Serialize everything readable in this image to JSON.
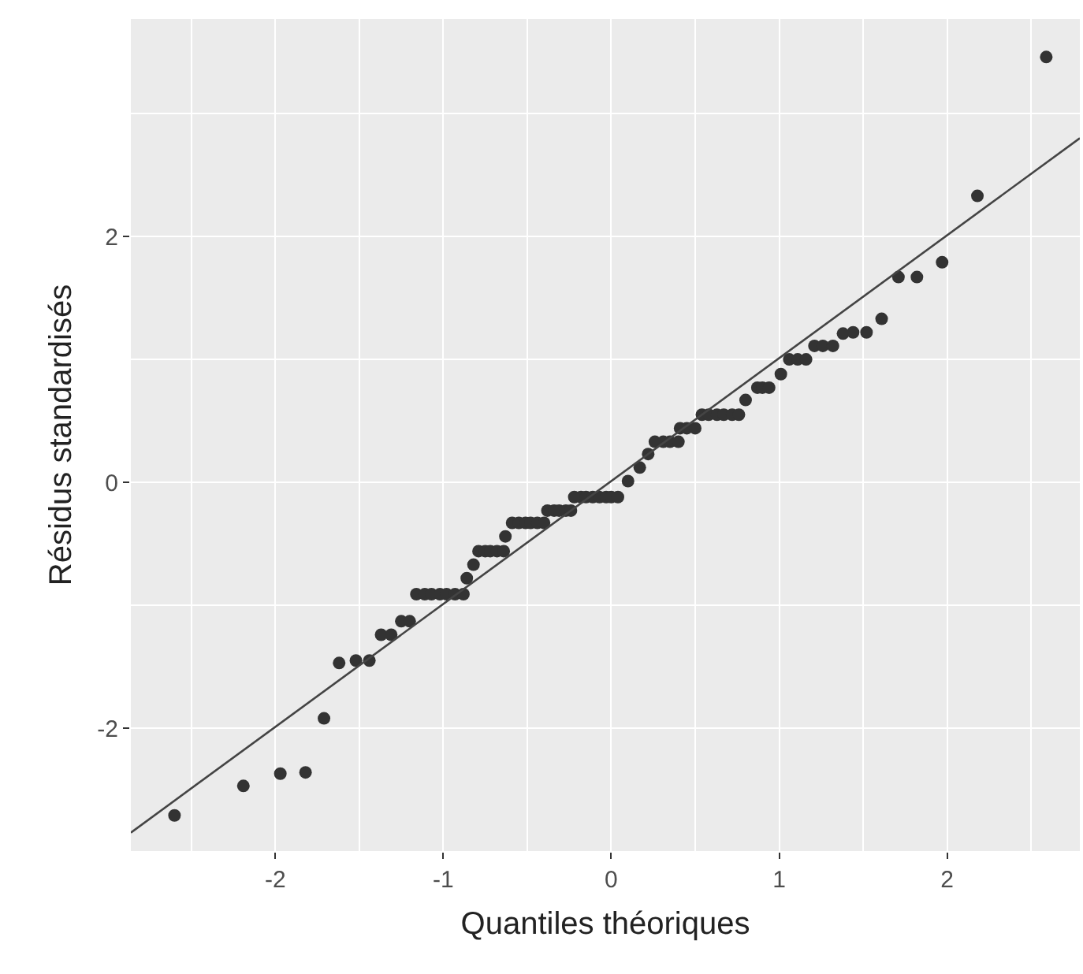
{
  "chart_data": {
    "type": "scatter",
    "xlabel": "Quantiles théoriques",
    "ylabel": "Résidus standardisés",
    "xlim": [
      -2.86,
      2.79
    ],
    "ylim": [
      -3.0,
      3.77
    ],
    "xticks": [
      -2,
      -1,
      0,
      1,
      2
    ],
    "yticks": [
      -2,
      0,
      2
    ],
    "grid": true,
    "marker": "circle",
    "series": [
      {
        "color": "#333333",
        "x": [
          -2.6,
          -2.19,
          -1.97,
          -1.82,
          -1.71,
          -1.62,
          -1.52,
          -1.44,
          -1.37,
          -1.31,
          -1.25,
          -1.2,
          -1.16,
          -1.11,
          -1.07,
          -1.02,
          -0.98,
          -0.93,
          -0.88,
          -0.86,
          -0.82,
          -0.79,
          -0.75,
          -0.72,
          -0.68,
          -0.64,
          -0.63,
          -0.59,
          -0.55,
          -0.51,
          -0.48,
          -0.44,
          -0.4,
          -0.38,
          -0.34,
          -0.31,
          -0.27,
          -0.24,
          -0.22,
          -0.18,
          -0.15,
          -0.11,
          -0.07,
          -0.03,
          0.0,
          0.04,
          0.1,
          0.17,
          0.22,
          0.26,
          0.31,
          0.35,
          0.4,
          0.41,
          0.45,
          0.5,
          0.54,
          0.58,
          0.63,
          0.67,
          0.72,
          0.76,
          0.8,
          0.87,
          0.9,
          0.94,
          1.01,
          1.06,
          1.11,
          1.16,
          1.21,
          1.26,
          1.32,
          1.38,
          1.44,
          1.52,
          1.61,
          1.71,
          1.82,
          1.97,
          2.18,
          2.59
        ],
        "values": [
          -2.71,
          -2.47,
          -2.37,
          -2.36,
          -1.92,
          -1.47,
          -1.45,
          -1.45,
          -1.24,
          -1.24,
          -1.13,
          -1.13,
          -0.91,
          -0.91,
          -0.91,
          -0.91,
          -0.91,
          -0.91,
          -0.91,
          -0.78,
          -0.67,
          -0.56,
          -0.56,
          -0.56,
          -0.56,
          -0.56,
          -0.44,
          -0.33,
          -0.33,
          -0.33,
          -0.33,
          -0.33,
          -0.33,
          -0.23,
          -0.23,
          -0.23,
          -0.23,
          -0.23,
          -0.12,
          -0.12,
          -0.12,
          -0.12,
          -0.12,
          -0.12,
          -0.12,
          -0.12,
          0.01,
          0.12,
          0.23,
          0.33,
          0.33,
          0.33,
          0.33,
          0.44,
          0.44,
          0.44,
          0.55,
          0.55,
          0.55,
          0.55,
          0.55,
          0.55,
          0.67,
          0.77,
          0.77,
          0.77,
          0.88,
          1.0,
          1.0,
          1.0,
          1.11,
          1.11,
          1.11,
          1.21,
          1.22,
          1.22,
          1.33,
          1.67,
          1.67,
          1.79,
          2.33,
          3.46
        ]
      },
      {
        "type": "line",
        "color": "#444444",
        "marker": "none",
        "line_style": "solid",
        "x": [
          -2.86,
          2.79
        ],
        "values": [
          -2.85,
          2.8
        ]
      }
    ]
  }
}
